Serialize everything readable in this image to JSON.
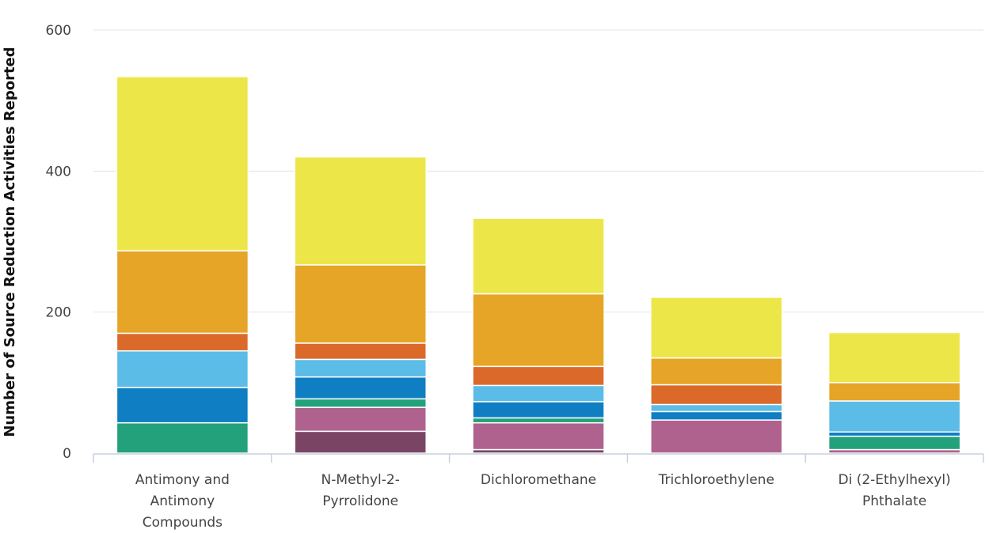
{
  "chart_data": {
    "type": "bar",
    "stacked": true,
    "title": "",
    "xlabel": "",
    "ylabel": "Number of Source Reduction Activities Reported",
    "ylim": [
      0,
      600
    ],
    "yticks": [
      0,
      200,
      400,
      600
    ],
    "grid": true,
    "categories": [
      "Antimony and Antimony Compounds",
      "N-Methyl-2-Pyrrolidone",
      "Dichloromethane",
      "Trichloroethylene",
      "Di (2-Ethylhexyl) Phthalate"
    ],
    "category_lines": [
      [
        "Antimony and",
        "Antimony",
        "Compounds"
      ],
      [
        "N-Methyl-2-",
        "Pyrrolidone"
      ],
      [
        "Dichloromethane"
      ],
      [
        "Trichloroethylene"
      ],
      [
        "Di (2-Ethylhexyl)",
        "Phthalate"
      ]
    ],
    "series": [
      {
        "color": "#7a4564",
        "values": [
          0,
          31,
          5,
          0,
          0
        ]
      },
      {
        "color": "#b0628f",
        "values": [
          0,
          34,
          38,
          47,
          5
        ]
      },
      {
        "color": "#22a17a",
        "values": [
          43,
          12,
          7,
          0,
          19
        ]
      },
      {
        "color": "#107ec2",
        "values": [
          50,
          31,
          23,
          12,
          6
        ]
      },
      {
        "color": "#5bbce8",
        "values": [
          52,
          25,
          23,
          10,
          44
        ]
      },
      {
        "color": "#db6a2a",
        "values": [
          25,
          23,
          27,
          28,
          0
        ]
      },
      {
        "color": "#e6a526",
        "values": [
          117,
          111,
          103,
          38,
          26
        ]
      },
      {
        "color": "#ede649",
        "values": [
          247,
          153,
          107,
          86,
          71
        ]
      }
    ]
  }
}
